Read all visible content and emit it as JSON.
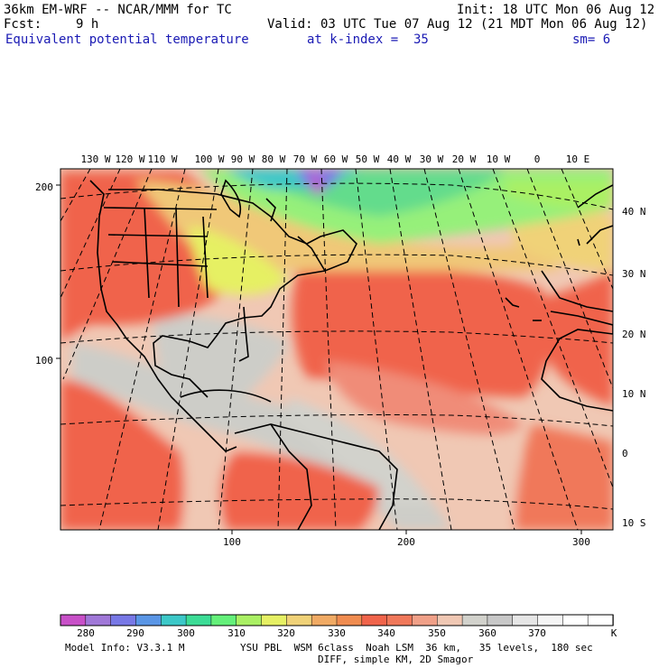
{
  "header": {
    "model": "36km EM-WRF -- NCAR/MMM for TC",
    "init": "Init: 18 UTC Mon 06 Aug 12",
    "fcst_label": "Fcst:",
    "fcst_value": "9 h",
    "valid": "Valid: 03 UTC Tue 07 Aug 12 (21 MDT Mon 06 Aug 12)",
    "field": "Equivalent potential temperature",
    "level": "at k-index =  35",
    "smoothing": "sm= 6"
  },
  "map": {
    "lon_labels": [
      "130 W",
      "120 W",
      "110 W",
      "100 W",
      "90 W",
      "80 W",
      "70 W",
      "60 W",
      "50 W",
      "40 W",
      "30 W",
      "20 W",
      "10 W",
      "0",
      "10 E"
    ],
    "lat_labels": [
      "40 N",
      "30 N",
      "20 N",
      "10 N",
      "0",
      "10 S"
    ],
    "grid_y_labels": [
      "200",
      "100"
    ],
    "grid_x_labels": [
      "100",
      "200",
      "300"
    ]
  },
  "colorbar": {
    "tick_labels": [
      "280",
      "290",
      "300",
      "310",
      "320",
      "330",
      "340",
      "350",
      "360",
      "370"
    ],
    "units": "K",
    "colors": [
      "#c850c8",
      "#a078d8",
      "#7878e6",
      "#5a96e6",
      "#3cc8c8",
      "#3cdc96",
      "#64f07a",
      "#aaf064",
      "#e6f064",
      "#f0d278",
      "#f0aa64",
      "#f08c50",
      "#f0644b",
      "#f0785a",
      "#f0a088",
      "#f0c8b4",
      "#d2d2cc",
      "#c8c8c8",
      "#e6e6e6",
      "#f5f5f5",
      "#ffffff",
      "#ffffff"
    ]
  },
  "footer": {
    "line1_left": "Model Info: V3.3.1 M",
    "line1_right": "YSU PBL  WSM 6class  Noah LSM  36 km,   35 levels,  180 sec",
    "line2": "DIFF, simple KM, 2D Smagor"
  }
}
